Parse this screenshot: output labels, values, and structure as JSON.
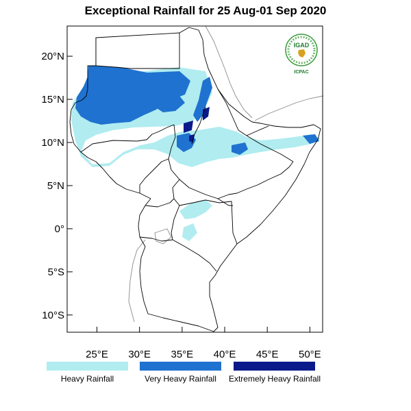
{
  "title": "Exceptional Rainfall for 25 Aug-01 Sep 2020",
  "map": {
    "extent": {
      "lon_min": 21.5,
      "lon_max": 51.5,
      "lat_min": -12,
      "lat_max": 23.5
    },
    "lat_ticks": [
      {
        "value": 20,
        "label": "20°N"
      },
      {
        "value": 15,
        "label": "15°N"
      },
      {
        "value": 10,
        "label": "10°N"
      },
      {
        "value": 5,
        "label": "5°N"
      },
      {
        "value": 0,
        "label": "0°"
      },
      {
        "value": -5,
        "label": "5°S"
      },
      {
        "value": -10,
        "label": "10°S"
      }
    ],
    "lon_ticks": [
      {
        "value": 25,
        "label": "25°E"
      },
      {
        "value": 30,
        "label": "30°E"
      },
      {
        "value": 35,
        "label": "35°E"
      },
      {
        "value": 40,
        "label": "40°E"
      },
      {
        "value": 45,
        "label": "45°E"
      },
      {
        "value": 50,
        "label": "50°E"
      }
    ]
  },
  "logo": {
    "name": "IGAD",
    "caption": "ICPAC"
  },
  "legend": [
    {
      "label": "Heavy Rainfall",
      "color": "#b0ecf0"
    },
    {
      "label": "Very Heavy Rainfall",
      "color": "#1f72cf"
    },
    {
      "label": "Extremely Heavy Rainfall",
      "color": "#0a1a8a"
    }
  ]
}
